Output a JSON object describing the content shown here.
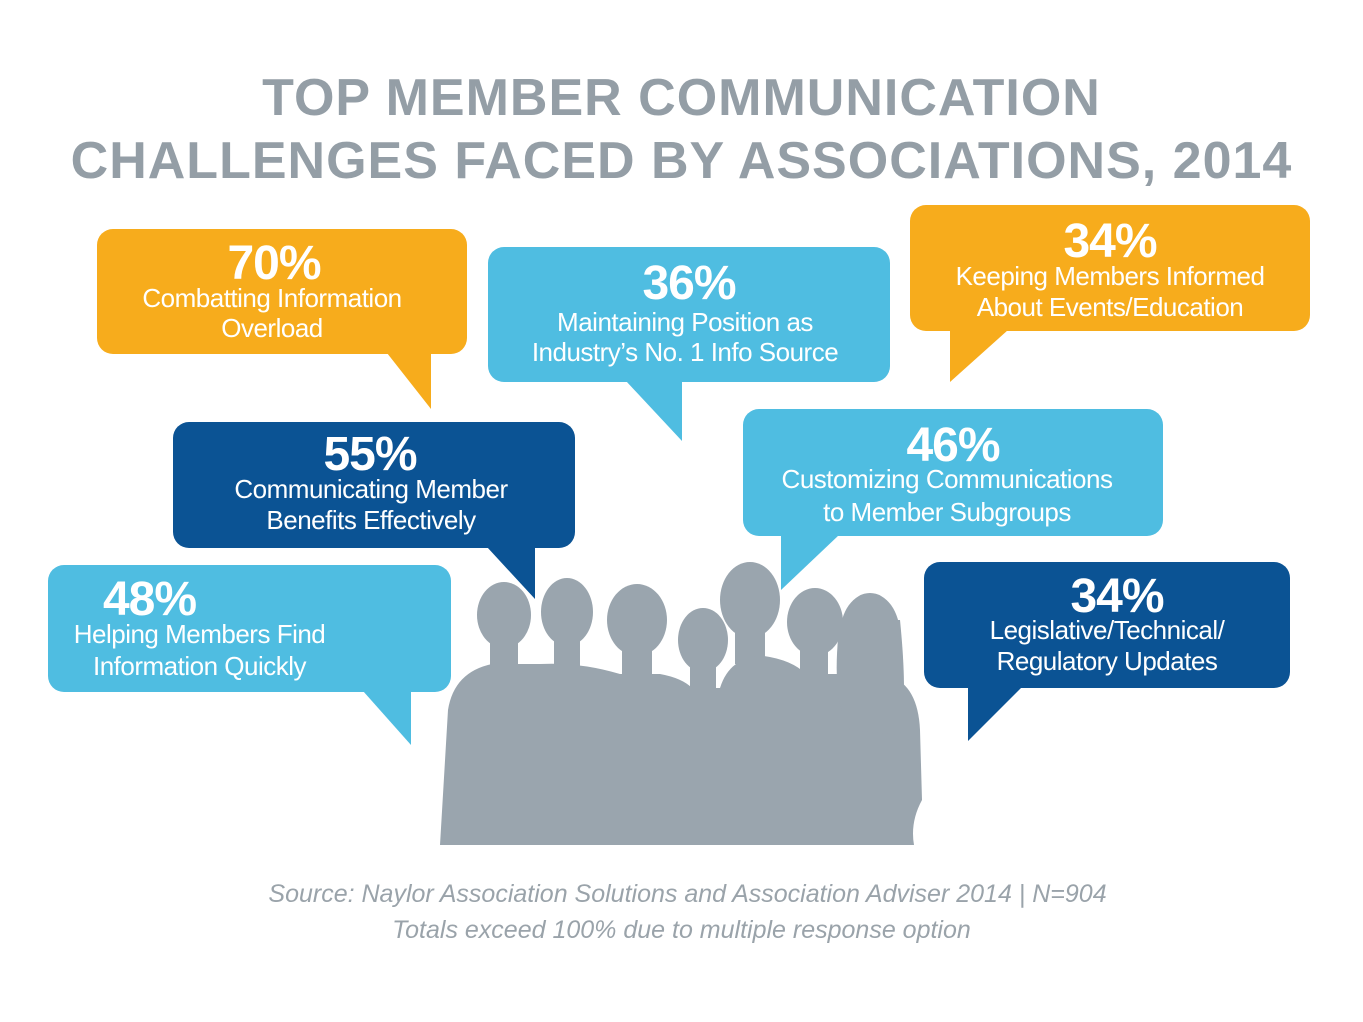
{
  "title": {
    "line1": "TOP MEMBER COMMUNICATION",
    "line2": "CHALLENGES FACED BY ASSOCIATIONS, 2014"
  },
  "colors": {
    "orange": "#f7ac1c",
    "light_blue": "#4fbde1",
    "dark_blue": "#0b5394",
    "silhouette": "#9aa5ae",
    "title_gray": "#949ea6"
  },
  "chart_data": {
    "type": "bar",
    "title": "TOP MEMBER COMMUNICATION CHALLENGES FACED BY ASSOCIATIONS, 2014",
    "unit": "%",
    "items": [
      {
        "value": 70,
        "value_label": "70%",
        "line1": "Combatting Information",
        "line2": "Overload",
        "color": "#f7ac1c"
      },
      {
        "value": 36,
        "value_label": "36%",
        "line1": "Maintaining Position as",
        "line2": "Industry’s No. 1 Info Source",
        "color": "#4fbde1"
      },
      {
        "value": 34,
        "value_label": "34%",
        "line1": "Keeping Members Informed",
        "line2": "About Events/Education",
        "color": "#f7ac1c"
      },
      {
        "value": 55,
        "value_label": "55%",
        "line1": "Communicating Member",
        "line2": "Benefits Effectively",
        "color": "#0b5394"
      },
      {
        "value": 46,
        "value_label": "46%",
        "line1": "Customizing Communications",
        "line2": "to Member Subgroups",
        "color": "#4fbde1"
      },
      {
        "value": 48,
        "value_label": "48%",
        "line1": "Helping Members Find",
        "line2": "Information Quickly",
        "color": "#4fbde1"
      },
      {
        "value": 34,
        "value_label": "34%",
        "line1": "Legislative/Technical/",
        "line2": "Regulatory Updates",
        "color": "#0b5394"
      }
    ]
  },
  "footer": {
    "source": "Source: Naylor Association Solutions and Association Adviser 2014  |  N=904",
    "note": "Totals exceed 100% due to multiple response option"
  }
}
